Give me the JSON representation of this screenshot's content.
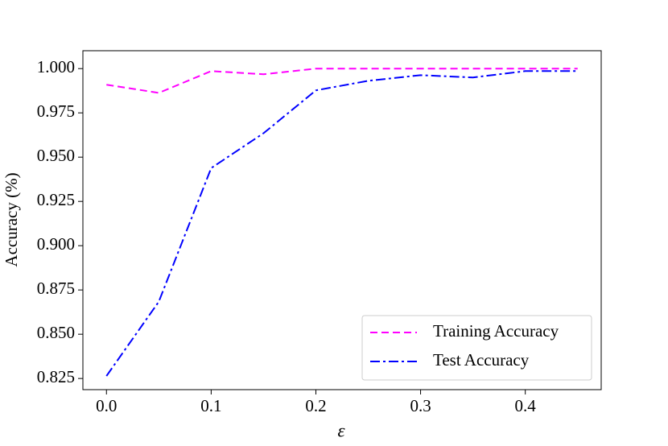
{
  "chart_data": {
    "type": "line",
    "x": [
      0,
      0.05,
      0.1,
      0.15,
      0.2,
      0.25,
      0.3,
      0.35,
      0.4,
      0.45
    ],
    "series": [
      {
        "name": "Training Accuracy",
        "color": "#ff00ff",
        "dash": "dashed",
        "values": [
          0.9909,
          0.9863,
          0.9986,
          0.9968,
          1.0,
          1.0,
          1.0,
          1.0,
          1.0,
          1.0
        ]
      },
      {
        "name": "Test Accuracy",
        "color": "#0000ff",
        "dash": "dashdot",
        "values": [
          0.8264,
          0.8684,
          0.9438,
          0.9635,
          0.9877,
          0.9931,
          0.9963,
          0.995,
          0.9986,
          0.9986
        ]
      }
    ],
    "x_label": "ε",
    "y_label": "Accuracy (%)",
    "xlim": [
      -0.0225,
      0.4725
    ],
    "xticks": [
      {
        "value": 0,
        "label": "0.0"
      },
      {
        "value": 0.1,
        "label": "0.1"
      },
      {
        "value": 0.2,
        "label": "0.2"
      },
      {
        "value": 0.3,
        "label": "0.3"
      },
      {
        "value": 0.4,
        "label": "0.4"
      }
    ],
    "ylim": [
      0.8187,
      1.0101
    ],
    "yticks": [
      {
        "value": 0.825,
        "label": "0.825"
      },
      {
        "value": 0.85,
        "label": "0.850"
      },
      {
        "value": 0.875,
        "label": "0.875"
      },
      {
        "value": 0.9,
        "label": "0.900"
      },
      {
        "value": 0.925,
        "label": "0.925"
      },
      {
        "value": 0.95,
        "label": "0.950"
      },
      {
        "value": 0.975,
        "label": "0.975"
      },
      {
        "value": 1.0,
        "label": "1.000"
      }
    ],
    "legend": "lower right",
    "grid": false
  }
}
